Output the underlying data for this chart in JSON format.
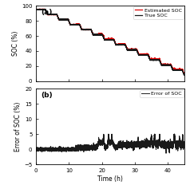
{
  "title_a": "(a)",
  "title_b": "(b)",
  "ylabel_a": "SOC (%)",
  "ylabel_b": "Error of SOC (%)",
  "xlabel": "Time (h)",
  "xlim": [
    0,
    45
  ],
  "ylim_a": [
    0,
    100
  ],
  "ylim_b": [
    -5,
    20
  ],
  "xticks": [
    0,
    10,
    20,
    30,
    40
  ],
  "yticks_a": [
    0,
    20,
    40,
    60,
    80,
    100
  ],
  "yticks_b": [
    -5,
    0,
    5,
    10,
    15,
    20
  ],
  "legend_a": [
    "True SOC",
    "Estimated SOC"
  ],
  "legend_b": [
    "Error of SOC"
  ],
  "true_soc_color": "#1a1a1a",
  "estimated_soc_color": "#dd0000",
  "error_color": "#1a1a1a",
  "bg_color": "#ffffff",
  "linewidth_soc": 0.9,
  "linewidth_err": 0.7,
  "seed": 42
}
